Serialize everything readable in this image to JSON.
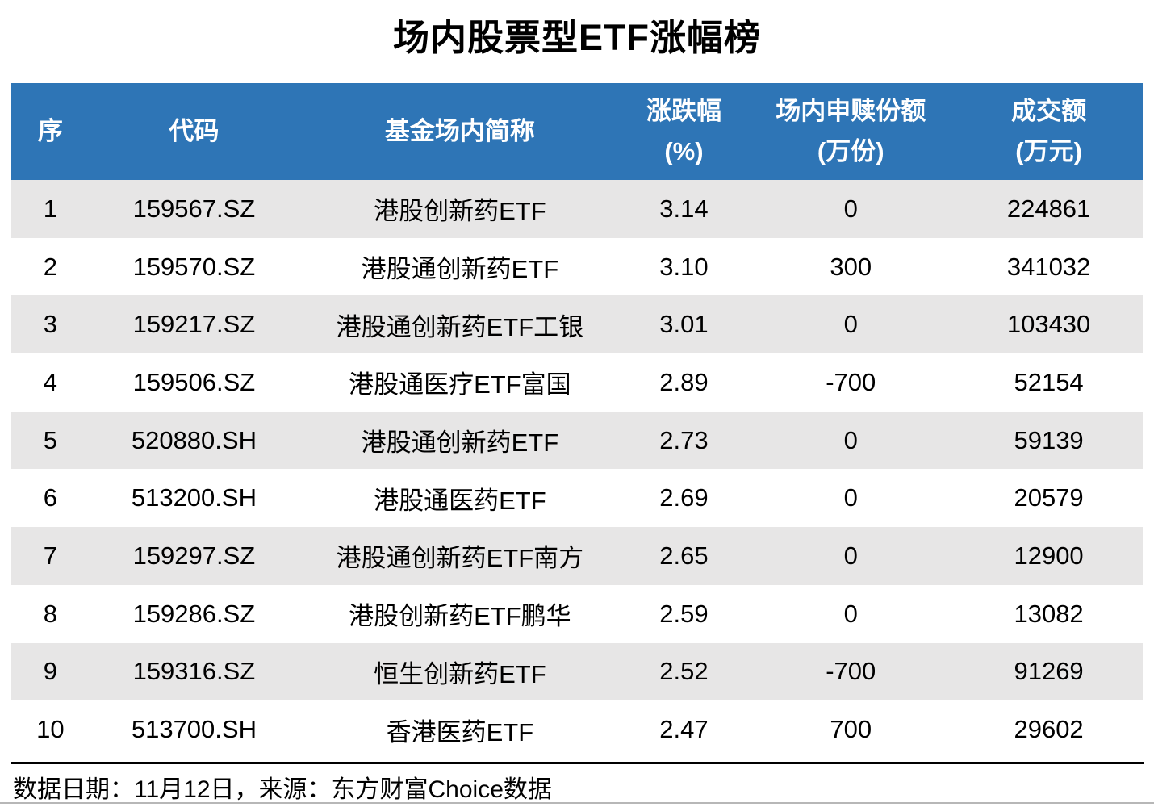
{
  "title": "场内股票型ETF涨幅榜",
  "colors": {
    "header_bg": "#2E75B6",
    "header_text": "#FFFFFF",
    "stripe_bg": "#E7E6E6",
    "row_bg": "#FFFFFF",
    "body_text": "#000000",
    "divider": "#000000"
  },
  "table": {
    "header": [
      {
        "lines": [
          "序"
        ]
      },
      {
        "lines": [
          "代码"
        ]
      },
      {
        "lines": [
          "基金场内简称"
        ]
      },
      {
        "lines": [
          "涨跌幅",
          "(%)"
        ]
      },
      {
        "lines": [
          "场内申赎份额",
          "(万份)"
        ]
      },
      {
        "lines": [
          "成交额",
          "(万元)"
        ]
      }
    ],
    "rows": [
      {
        "cells": [
          "1",
          "159567.SZ",
          "港股创新药ETF",
          "3.14",
          "0",
          "224861"
        ]
      },
      {
        "cells": [
          "2",
          "159570.SZ",
          "港股通创新药ETF",
          "3.10",
          "300",
          "341032"
        ]
      },
      {
        "cells": [
          "3",
          "159217.SZ",
          "港股通创新药ETF工银",
          "3.01",
          "0",
          "103430"
        ]
      },
      {
        "cells": [
          "4",
          "159506.SZ",
          "港股通医疗ETF富国",
          "2.89",
          "-700",
          "52154"
        ]
      },
      {
        "cells": [
          "5",
          "520880.SH",
          "港股通创新药ETF",
          "2.73",
          "0",
          "59139"
        ]
      },
      {
        "cells": [
          "6",
          "513200.SH",
          "港股通医药ETF",
          "2.69",
          "0",
          "20579"
        ]
      },
      {
        "cells": [
          "7",
          "159297.SZ",
          "港股通创新药ETF南方",
          "2.65",
          "0",
          "12900"
        ]
      },
      {
        "cells": [
          "8",
          "159286.SZ",
          "港股创新药ETF鹏华",
          "2.59",
          "0",
          "13082"
        ]
      },
      {
        "cells": [
          "9",
          "159316.SZ",
          "恒生创新药ETF",
          "2.52",
          "-700",
          "91269"
        ]
      },
      {
        "cells": [
          "10",
          "513700.SH",
          "香港医药ETF",
          "2.47",
          "700",
          "29602"
        ]
      }
    ]
  },
  "footer": {
    "note": "数据日期：11月12日，来源：东方财富Choice数据"
  },
  "chart_data": {
    "type": "table",
    "title": "场内股票型ETF涨幅榜",
    "columns": [
      "序",
      "代码",
      "基金场内简称",
      "涨跌幅(%)",
      "场内申赎份额(万份)",
      "成交额(万元)"
    ],
    "rows": [
      [
        1,
        "159567.SZ",
        "港股创新药ETF",
        3.14,
        0,
        224861
      ],
      [
        2,
        "159570.SZ",
        "港股通创新药ETF",
        3.1,
        300,
        341032
      ],
      [
        3,
        "159217.SZ",
        "港股通创新药ETF工银",
        3.01,
        0,
        103430
      ],
      [
        4,
        "159506.SZ",
        "港股通医疗ETF富国",
        2.89,
        -700,
        52154
      ],
      [
        5,
        "520880.SH",
        "港股通创新药ETF",
        2.73,
        0,
        59139
      ],
      [
        6,
        "513200.SH",
        "港股通医药ETF",
        2.69,
        0,
        20579
      ],
      [
        7,
        "159297.SZ",
        "港股通创新药ETF南方",
        2.65,
        0,
        12900
      ],
      [
        8,
        "159286.SZ",
        "港股创新药ETF鹏华",
        2.59,
        0,
        13082
      ],
      [
        9,
        "159316.SZ",
        "恒生创新药ETF",
        2.52,
        -700,
        91269
      ],
      [
        10,
        "513700.SH",
        "香港医药ETF",
        2.47,
        700,
        29602
      ]
    ],
    "source_note": "数据日期：11月12日，来源：东方财富Choice数据"
  }
}
